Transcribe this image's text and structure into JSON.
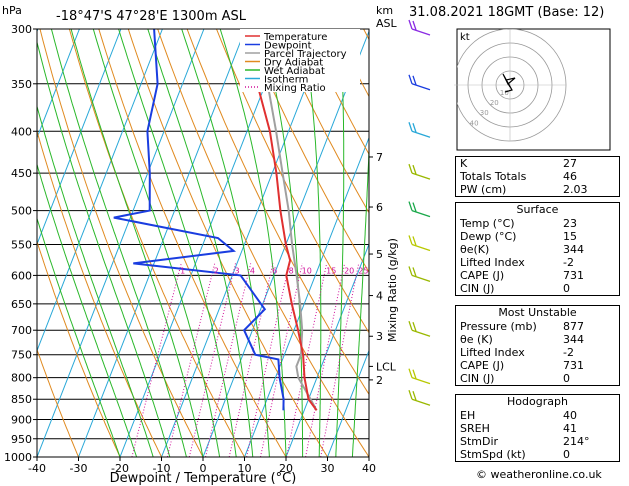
{
  "header": {
    "pressure_unit": "hPa",
    "location": "-18°47'S  47°28'E  1300m  ASL",
    "height_unit": "km",
    "height_ref": "ASL",
    "datetime": "31.08.2021  18GMT  (Base: 12)"
  },
  "axes": {
    "xlabel": "Dewpoint / Temperature (°C)",
    "ylabel_right": "Mixing Ratio (g/kg)",
    "pressure_ticks": [
      300,
      350,
      400,
      450,
      500,
      550,
      600,
      650,
      700,
      750,
      800,
      850,
      900,
      950,
      1000
    ],
    "temp_ticks": [
      -40,
      -30,
      -20,
      -10,
      0,
      10,
      20,
      30,
      40
    ],
    "km_ticks": [
      {
        "label": "7",
        "p": 430
      },
      {
        "label": "6",
        "p": 495
      },
      {
        "label": "5",
        "p": 565
      },
      {
        "label": "4",
        "p": 635
      },
      {
        "label": "3",
        "p": 712
      },
      {
        "label": "LCL",
        "p": 775
      },
      {
        "label": "2",
        "p": 805
      }
    ],
    "mixing_ratio_labels": [
      "1",
      "2",
      "3",
      "4",
      "6",
      "8",
      "10",
      "15",
      "20",
      "25"
    ]
  },
  "legend": [
    {
      "label": "Temperature",
      "color": "#e03030"
    },
    {
      "label": "Dewpoint",
      "color": "#1a3de0"
    },
    {
      "label": "Parcel Trajectory",
      "color": "#a0a0a0"
    },
    {
      "label": "Dry Adiabat",
      "color": "#e08a20"
    },
    {
      "label": "Wet Adiabat",
      "color": "#2ab82a"
    },
    {
      "label": "Isotherm",
      "color": "#29a8d8"
    },
    {
      "label": "Mixing Ratio",
      "color": "#d0109a"
    }
  ],
  "chart_data": {
    "type": "line",
    "title": "",
    "xlabel": "Dewpoint / Temperature (°C)",
    "ylabel": "hPa",
    "xlim": [
      -40,
      40
    ],
    "ylim": [
      1000,
      300
    ],
    "y_scale": "log",
    "skew": true,
    "series": [
      {
        "name": "Temperature",
        "color": "#e03030",
        "points": [
          [
            877,
            23
          ],
          [
            850,
            20
          ],
          [
            800,
            17
          ],
          [
            750,
            14.5
          ],
          [
            700,
            11
          ],
          [
            650,
            7
          ],
          [
            600,
            3
          ],
          [
            575,
            2.5
          ],
          [
            550,
            0
          ],
          [
            500,
            -4.5
          ],
          [
            450,
            -9
          ],
          [
            400,
            -14.5
          ],
          [
            350,
            -22
          ],
          [
            300,
            -31
          ]
        ]
      },
      {
        "name": "Dewpoint",
        "color": "#1a3de0",
        "points": [
          [
            877,
            15
          ],
          [
            850,
            14
          ],
          [
            800,
            11
          ],
          [
            760,
            9
          ],
          [
            750,
            3
          ],
          [
            700,
            -2
          ],
          [
            660,
            1
          ],
          [
            600,
            -8
          ],
          [
            580,
            -35
          ],
          [
            560,
            -12
          ],
          [
            540,
            -17
          ],
          [
            510,
            -44
          ],
          [
            500,
            -36
          ],
          [
            450,
            -39.5
          ],
          [
            400,
            -44
          ],
          [
            350,
            -46
          ],
          [
            300,
            -52
          ]
        ]
      },
      {
        "name": "Parcel Trajectory",
        "color": "#a0a0a0",
        "points": [
          [
            877,
            23
          ],
          [
            850,
            20.5
          ],
          [
            800,
            15.5
          ],
          [
            775,
            14
          ],
          [
            750,
            14
          ],
          [
            700,
            12
          ],
          [
            650,
            9
          ],
          [
            600,
            5.5
          ],
          [
            550,
            1.5
          ],
          [
            500,
            -2.5
          ],
          [
            450,
            -7.5
          ],
          [
            400,
            -13
          ],
          [
            350,
            -19.5
          ],
          [
            300,
            -27
          ]
        ]
      }
    ]
  },
  "hodograph": {
    "label": "kt",
    "ring_labels": [
      "10",
      "20",
      "30",
      "40"
    ]
  },
  "wind_barbs": [
    {
      "p": 300,
      "color": "#8a2be2"
    },
    {
      "p": 350,
      "color": "#1a3de0"
    },
    {
      "p": 400,
      "color": "#29a8d8"
    },
    {
      "p": 450,
      "color": "#9ab800"
    },
    {
      "p": 500,
      "color": "#1aa84a"
    },
    {
      "p": 550,
      "color": "#b8c800"
    },
    {
      "p": 600,
      "color": "#9ab800"
    },
    {
      "p": 700,
      "color": "#9ab800"
    },
    {
      "p": 800,
      "color": "#b8c800"
    },
    {
      "p": 850,
      "color": "#9ab800"
    }
  ],
  "indices": {
    "top": [
      {
        "label": "K",
        "value": "27"
      },
      {
        "label": "Totals Totals",
        "value": "46"
      },
      {
        "label": "PW (cm)",
        "value": "2.03"
      }
    ],
    "surface": {
      "title": "Surface",
      "rows": [
        {
          "label": "Temp (°C)",
          "value": "23"
        },
        {
          "label": "Dewp (°C)",
          "value": "15"
        },
        {
          "label": "θe(K)",
          "value": "344"
        },
        {
          "label": "Lifted Index",
          "value": "-2"
        },
        {
          "label": "CAPE (J)",
          "value": "731"
        },
        {
          "label": "CIN (J)",
          "value": "0"
        }
      ]
    },
    "most_unstable": {
      "title": "Most Unstable",
      "rows": [
        {
          "label": "Pressure (mb)",
          "value": "877"
        },
        {
          "label": "θe (K)",
          "value": "344"
        },
        {
          "label": "Lifted Index",
          "value": "-2"
        },
        {
          "label": "CAPE (J)",
          "value": "731"
        },
        {
          "label": "CIN (J)",
          "value": "0"
        }
      ]
    },
    "hodograph": {
      "title": "Hodograph",
      "rows": [
        {
          "label": "EH",
          "value": "40"
        },
        {
          "label": "SREH",
          "value": "41"
        },
        {
          "label": "StmDir",
          "value": "214°"
        },
        {
          "label": "StmSpd (kt)",
          "value": "0"
        }
      ]
    }
  },
  "credit": "© weatheronline.co.uk"
}
